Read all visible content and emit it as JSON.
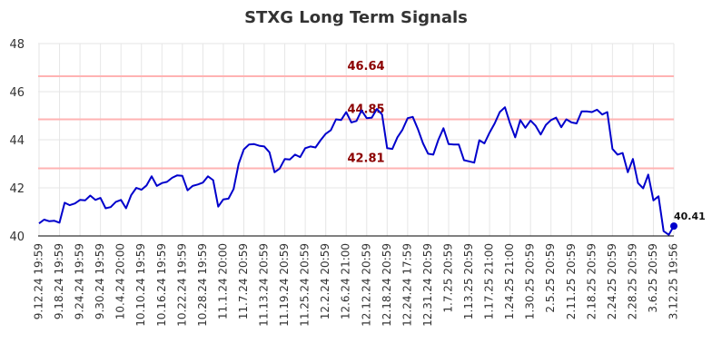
{
  "chart_data": {
    "type": "line",
    "title": "STXG Long Term Signals",
    "xlabel": "",
    "ylabel": "",
    "ylim": [
      40,
      48
    ],
    "yticks": [
      40,
      42,
      44,
      46,
      48
    ],
    "grid": true,
    "line_color": "#0000cc",
    "hline_color": "#ffb3b3",
    "hline_label_color": "#8b0000",
    "xtick_labels": [
      "9.12.24 19:59",
      "9.18.24 19:59",
      "9.24.24 19:59",
      "9.30.24 19:59",
      "10.4.24 20:00",
      "10.10.24 19:59",
      "10.16.24 19:59",
      "10.22.24 19:59",
      "10.28.24 19:59",
      "11.1.24 20:00",
      "11.7.24 20:59",
      "11.13.24 20:59",
      "11.19.24 20:59",
      "11.25.24 20:59",
      "12.2.24 20:59",
      "12.6.24 21:00",
      "12.12.24 20:59",
      "12.18.24 20:59",
      "12.24.24 17:59",
      "12.31.24 20:59",
      "1.7.25 20:59",
      "1.13.25 20:59",
      "1.17.25 21:00",
      "1.24.25 21:00",
      "1.30.25 20:59",
      "2.5.25 20:59",
      "2.11.25 20:59",
      "2.18.25 20:59",
      "2.24.25 20:59",
      "2.28.25 20:59",
      "3.6.25 20:59",
      "3.12.25 19:56"
    ],
    "xtick_index": [
      0,
      4,
      8,
      12,
      16,
      20,
      24,
      28,
      32,
      36,
      40,
      44,
      48,
      52,
      56,
      60,
      64,
      68,
      72,
      76,
      80,
      84,
      88,
      92,
      96,
      100,
      104,
      108,
      112,
      116,
      120,
      124
    ],
    "hlines": [
      {
        "value": 46.64,
        "label": "46.64"
      },
      {
        "value": 44.85,
        "label": "44.85"
      },
      {
        "value": 42.81,
        "label": "42.81"
      }
    ],
    "last_value_label": "40.41",
    "series": [
      {
        "values": [
          40.52,
          40.68,
          40.61,
          40.63,
          40.55,
          41.38,
          41.28,
          41.35,
          41.5,
          41.48,
          41.68,
          41.5,
          41.58,
          41.15,
          41.2,
          41.42,
          41.5,
          41.15,
          41.7,
          42.0,
          41.92,
          42.1,
          42.48,
          42.08,
          42.2,
          42.25,
          42.42,
          42.52,
          42.5,
          41.9,
          42.08,
          42.14,
          42.22,
          42.48,
          42.32,
          41.22,
          41.52,
          41.55,
          41.95,
          43.0,
          43.6,
          43.8,
          43.82,
          43.75,
          43.72,
          43.48,
          42.65,
          42.8,
          43.2,
          43.18,
          43.38,
          43.28,
          43.65,
          43.72,
          43.68,
          43.98,
          44.25,
          44.4,
          44.85,
          44.82,
          45.15,
          44.72,
          44.78,
          45.22,
          44.9,
          44.92,
          45.28,
          45.05,
          43.65,
          43.62,
          44.1,
          44.42,
          44.9,
          44.95,
          44.45,
          43.85,
          43.42,
          43.38,
          44.0,
          44.48,
          43.82,
          43.8,
          43.8,
          43.15,
          43.1,
          43.05,
          43.98,
          43.85,
          44.3,
          44.68,
          45.15,
          45.35,
          44.68,
          44.1,
          44.82,
          44.5,
          44.8,
          44.58,
          44.22,
          44.62,
          44.82,
          44.92,
          44.52,
          44.85,
          44.72,
          44.68,
          45.18,
          45.18,
          45.15,
          45.25,
          45.05,
          45.15,
          43.62,
          43.38,
          43.45,
          42.65,
          43.2,
          42.2,
          41.98,
          42.55,
          41.48,
          41.65,
          40.2,
          40.05,
          40.41
        ]
      }
    ]
  }
}
